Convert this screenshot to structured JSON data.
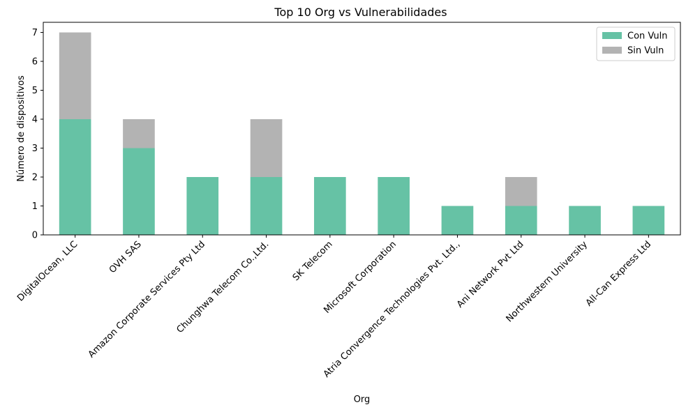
{
  "chart_data": {
    "type": "bar",
    "stacked": true,
    "title": "Top 10 Org vs Vulnerabilidades",
    "xlabel": "Org",
    "ylabel": "Número de dispositivos",
    "ylim": [
      0,
      7.35
    ],
    "yticks": [
      "0",
      "1",
      "2",
      "3",
      "4",
      "5",
      "6",
      "7"
    ],
    "grid": false,
    "legend_position": "top-right",
    "categories": [
      "DigitalOcean, LLC",
      "OVH SAS",
      "Amazon Corporate Services Pty Ltd",
      "Chunghwa Telecom Co.,Ltd.",
      "SK Telecom",
      "Microsoft Corporation",
      "Atria Convergence Technologies Pvt. Ltd.,",
      "Ani Network Pvt Ltd",
      "Northwestern University",
      "All-Can Express Ltd"
    ],
    "series": [
      {
        "name": "Con Vuln",
        "color": "#66c2a5",
        "values": [
          4,
          3,
          2,
          2,
          2,
          2,
          1,
          1,
          1,
          1
        ]
      },
      {
        "name": "Sin Vuln",
        "color": "#b3b3b3",
        "values": [
          3,
          1,
          0,
          2,
          0,
          0,
          0,
          1,
          0,
          0
        ]
      }
    ]
  }
}
